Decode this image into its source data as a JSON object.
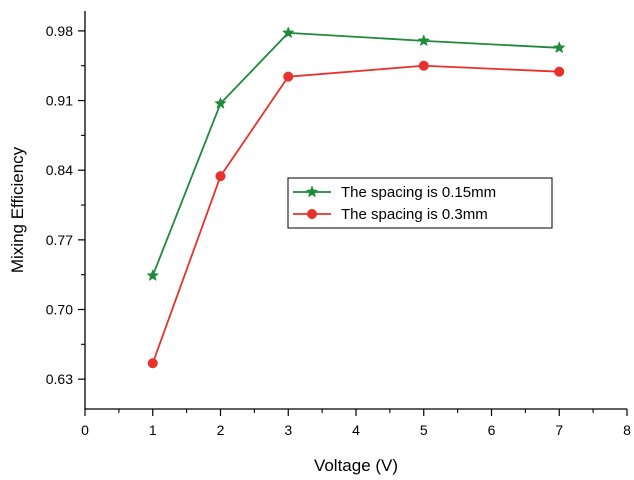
{
  "chart_data": {
    "type": "line",
    "title": "",
    "xlabel": "Voltage (V)",
    "ylabel": "Mixing Efficiency",
    "xlim": [
      0,
      8
    ],
    "ylim": [
      0.6,
      1.0
    ],
    "x_ticks": [
      0,
      1,
      2,
      3,
      4,
      5,
      6,
      7,
      8
    ],
    "x_tick_labels": [
      "0",
      "1",
      "2",
      "3",
      "4",
      "5",
      "6",
      "7",
      "8"
    ],
    "y_ticks": [
      0.63,
      0.7,
      0.77,
      0.84,
      0.91,
      0.98
    ],
    "y_tick_labels": [
      "0.63",
      "0.70",
      "0.77",
      "0.84",
      "0.91",
      "0.98"
    ],
    "grid": false,
    "legend_position": "center-right",
    "series": [
      {
        "name": "The spacing is 0.15mm",
        "color": "#1f8a3a",
        "marker": "star",
        "x": [
          1,
          2,
          3,
          5,
          7
        ],
        "y": [
          0.734,
          0.907,
          0.978,
          0.97,
          0.963
        ]
      },
      {
        "name": "The spacing is 0.3mm",
        "color": "#e8312a",
        "marker": "circle",
        "x": [
          1,
          2,
          3,
          5,
          7
        ],
        "y": [
          0.646,
          0.834,
          0.934,
          0.945,
          0.939
        ]
      }
    ]
  }
}
